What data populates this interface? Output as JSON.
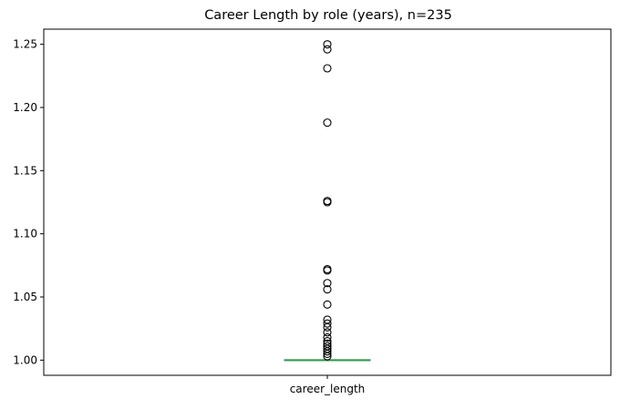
{
  "chart_data": {
    "type": "box",
    "title": "Career Length by role (years), n=235",
    "categories": [
      "career_length"
    ],
    "xlabel": "",
    "ylabel": "",
    "ylim": [
      0.988,
      1.262
    ],
    "y_ticks": [
      1.0,
      1.05,
      1.1,
      1.15,
      1.2,
      1.25
    ],
    "y_tick_labels": [
      "1.00",
      "1.05",
      "1.10",
      "1.15",
      "1.20",
      "1.25"
    ],
    "grid": false,
    "box": {
      "q1": 1.0,
      "median": 1.0,
      "q3": 1.0,
      "whisker_low": 1.0,
      "whisker_high": 1.0
    },
    "outliers": [
      1.25,
      1.246,
      1.231,
      1.188,
      1.126,
      1.125,
      1.072,
      1.071,
      1.061,
      1.056,
      1.044,
      1.032,
      1.029,
      1.026,
      1.022,
      1.018,
      1.015,
      1.013,
      1.011,
      1.009,
      1.007,
      1.005,
      1.003
    ],
    "colors": {
      "median": "#2ca02c",
      "box": "#1f77b4",
      "outlier_edge": "#000000",
      "axes": "#000000"
    }
  }
}
